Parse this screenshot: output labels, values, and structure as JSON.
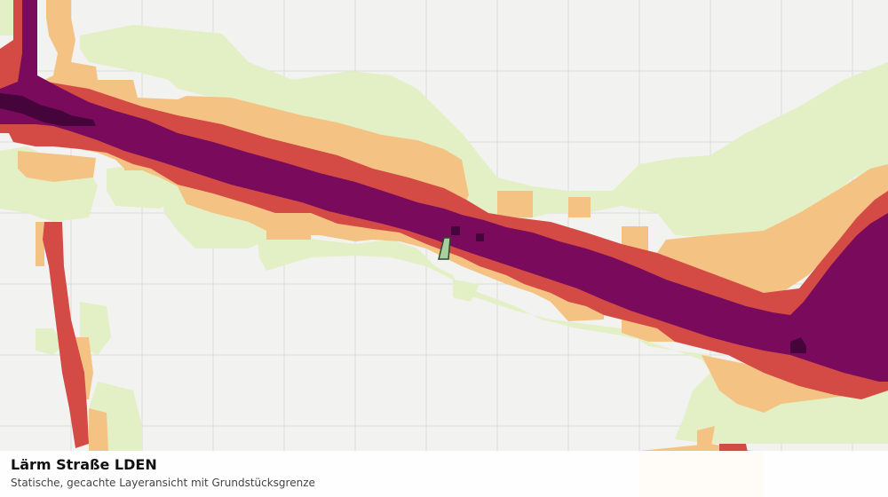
{
  "caption": {
    "title": "Lärm Straße LDEN",
    "subtitle": "Statische, gecachte Layeransicht mit Grundstücksgrenze"
  },
  "legend_colors": {
    "background": "#f2f2f0",
    "grid": "#dcdcda",
    "class_1_lightgreen": "#e3efc4",
    "class_2_orange": "#f4c384",
    "class_3_red": "#d44b45",
    "class_4_purple": "#7a0a5c",
    "class_5_darkpurple": "#45053a",
    "parcel_fill": "#a8cfa0",
    "parcel_stroke": "#2b4a2b"
  }
}
